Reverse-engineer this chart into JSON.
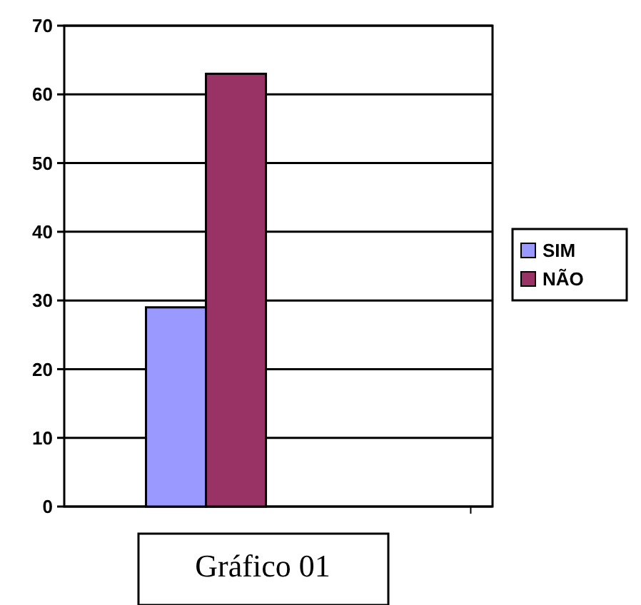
{
  "chart_data": {
    "type": "bar",
    "title": "Gráfico 01",
    "categories": [
      null
    ],
    "series": [
      {
        "name": "SIM",
        "color": "#9999ff",
        "values": [
          29
        ]
      },
      {
        "name": "NÃO",
        "color": "#993366",
        "values": [
          63
        ]
      }
    ],
    "ylim": [
      0,
      70
    ],
    "yticks": [
      0,
      10,
      20,
      30,
      40,
      50,
      60,
      70
    ],
    "grid": "y",
    "legend": "right"
  }
}
